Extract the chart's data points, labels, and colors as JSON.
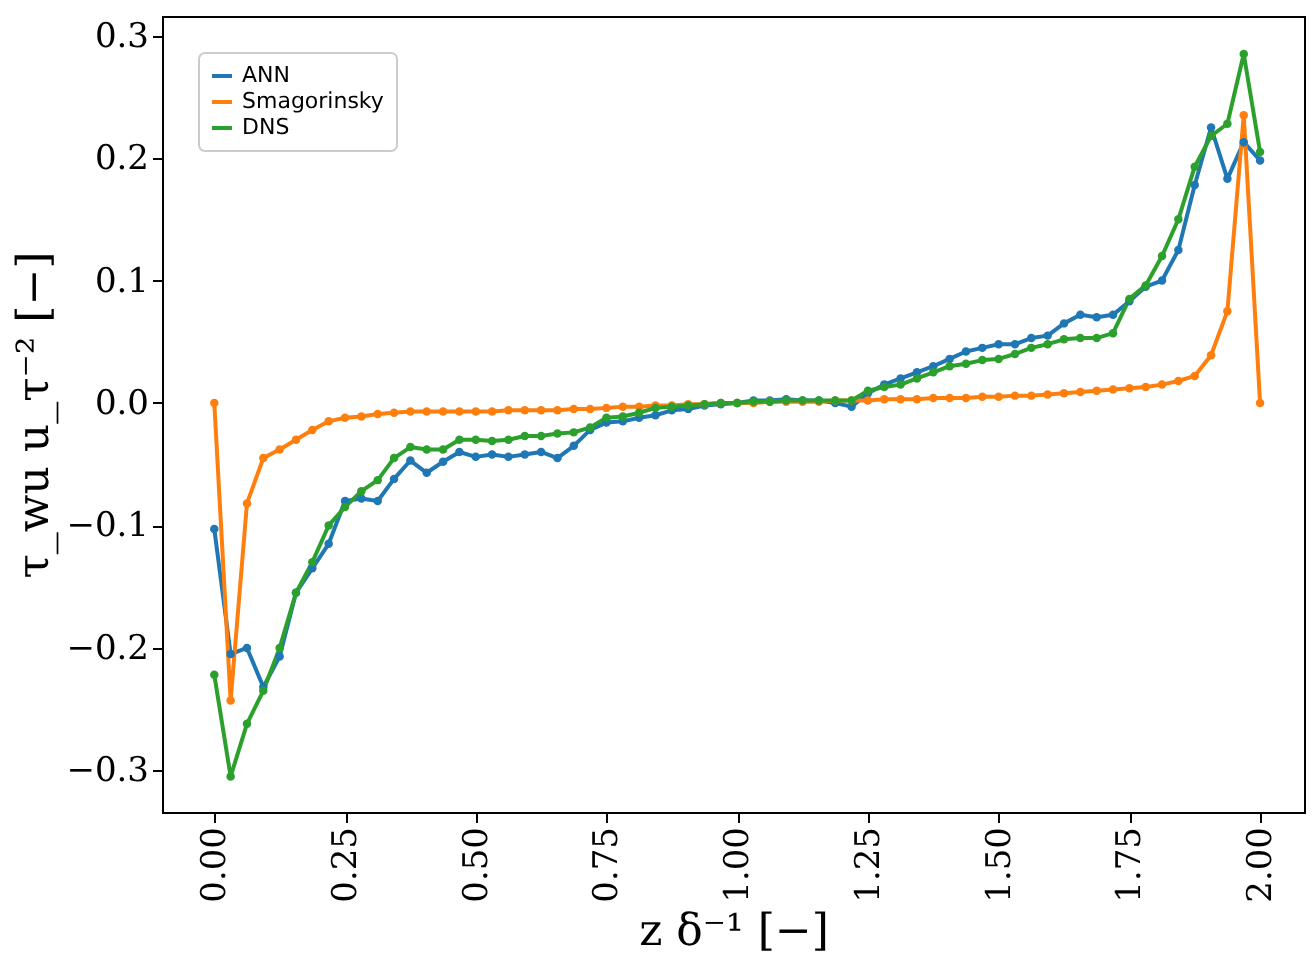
{
  "chart_data": {
    "type": "line",
    "xlabel": "z δ⁻¹ [−]",
    "ylabel": "τ_wu u_τ⁻² [−]",
    "x": [
      0,
      0.03125,
      0.0625,
      0.09375,
      0.125,
      0.15625,
      0.1875,
      0.21875,
      0.25,
      0.28125,
      0.3125,
      0.34375,
      0.375,
      0.40625,
      0.4375,
      0.46875,
      0.5,
      0.53125,
      0.5625,
      0.59375,
      0.625,
      0.65625,
      0.6875,
      0.71875,
      0.75,
      0.78125,
      0.8125,
      0.84375,
      0.875,
      0.90625,
      0.9375,
      0.96875,
      1.0,
      1.03125,
      1.0625,
      1.09375,
      1.125,
      1.15625,
      1.1875,
      1.21875,
      1.25,
      1.28125,
      1.3125,
      1.34375,
      1.375,
      1.40625,
      1.4375,
      1.46875,
      1.5,
      1.53125,
      1.5625,
      1.59375,
      1.625,
      1.65625,
      1.6875,
      1.71875,
      1.75,
      1.78125,
      1.8125,
      1.84375,
      1.875,
      1.90625,
      1.9375,
      1.96875,
      2.0
    ],
    "series": [
      {
        "name": "ANN",
        "color": "#1f77b4",
        "values": [
          -0.103,
          -0.205,
          -0.2,
          -0.232,
          -0.207,
          -0.155,
          -0.135,
          -0.115,
          -0.08,
          -0.078,
          -0.08,
          -0.062,
          -0.047,
          -0.057,
          -0.048,
          -0.04,
          -0.044,
          -0.042,
          -0.044,
          -0.042,
          -0.04,
          -0.045,
          -0.035,
          -0.022,
          -0.016,
          -0.015,
          -0.012,
          -0.01,
          -0.006,
          -0.005,
          -0.002,
          -0.001,
          0.0,
          0.002,
          0.002,
          0.003,
          0.002,
          0.002,
          0.0,
          -0.003,
          0.008,
          0.015,
          0.02,
          0.025,
          0.03,
          0.036,
          0.042,
          0.045,
          0.048,
          0.048,
          0.053,
          0.055,
          0.065,
          0.072,
          0.07,
          0.072,
          0.083,
          0.095,
          0.1,
          0.125,
          0.178,
          0.225,
          0.183,
          0.213,
          0.198
        ]
      },
      {
        "name": "Smagorinsky",
        "color": "#ff7f0e",
        "values": [
          0.0,
          -0.243,
          -0.082,
          -0.045,
          -0.038,
          -0.03,
          -0.022,
          -0.015,
          -0.012,
          -0.011,
          -0.009,
          -0.008,
          -0.007,
          -0.007,
          -0.007,
          -0.007,
          -0.007,
          -0.007,
          -0.006,
          -0.006,
          -0.006,
          -0.006,
          -0.005,
          -0.005,
          -0.004,
          -0.003,
          -0.003,
          -0.002,
          -0.002,
          -0.001,
          -0.001,
          0.0,
          0.0,
          0.0,
          0.001,
          0.001,
          0.001,
          0.001,
          0.002,
          0.002,
          0.002,
          0.003,
          0.003,
          0.003,
          0.004,
          0.004,
          0.004,
          0.005,
          0.005,
          0.006,
          0.006,
          0.007,
          0.008,
          0.009,
          0.01,
          0.011,
          0.012,
          0.013,
          0.015,
          0.018,
          0.022,
          0.039,
          0.075,
          0.235,
          0.0
        ]
      },
      {
        "name": "DNS",
        "color": "#2ca02c",
        "values": [
          -0.222,
          -0.305,
          -0.262,
          -0.235,
          -0.2,
          -0.155,
          -0.13,
          -0.1,
          -0.085,
          -0.072,
          -0.063,
          -0.045,
          -0.036,
          -0.038,
          -0.038,
          -0.03,
          -0.03,
          -0.031,
          -0.03,
          -0.027,
          -0.027,
          -0.025,
          -0.024,
          -0.02,
          -0.012,
          -0.011,
          -0.008,
          -0.004,
          -0.003,
          -0.002,
          -0.001,
          0.0,
          0.0,
          0.001,
          0.001,
          0.002,
          0.002,
          0.002,
          0.002,
          0.002,
          0.01,
          0.013,
          0.015,
          0.02,
          0.025,
          0.03,
          0.032,
          0.035,
          0.036,
          0.04,
          0.045,
          0.048,
          0.052,
          0.053,
          0.053,
          0.057,
          0.085,
          0.096,
          0.12,
          0.15,
          0.193,
          0.218,
          0.228,
          0.285,
          0.205
        ]
      }
    ],
    "xlim": [
      -0.1,
      2.084
    ],
    "ylim": [
      -0.334,
      0.316
    ],
    "xticks": [
      {
        "value": 0,
        "label": "0.00"
      },
      {
        "value": 0.25,
        "label": "0.25"
      },
      {
        "value": 0.5,
        "label": "0.50"
      },
      {
        "value": 0.75,
        "label": "0.75"
      },
      {
        "value": 1.0,
        "label": "1.00"
      },
      {
        "value": 1.25,
        "label": "1.25"
      },
      {
        "value": 1.5,
        "label": "1.50"
      },
      {
        "value": 1.75,
        "label": "1.75"
      },
      {
        "value": 2.0,
        "label": "2.00"
      }
    ],
    "yticks": [
      {
        "value": -0.3,
        "label": "−0.3"
      },
      {
        "value": -0.2,
        "label": "−0.2"
      },
      {
        "value": -0.1,
        "label": "−0.1"
      },
      {
        "value": 0,
        "label": "0.0"
      },
      {
        "value": 0.1,
        "label": "0.1"
      },
      {
        "value": 0.2,
        "label": "0.2"
      },
      {
        "value": 0.3,
        "label": "0.3"
      }
    ],
    "legend": "top left",
    "grid": false,
    "marker": "circle",
    "line_style": "solid"
  }
}
